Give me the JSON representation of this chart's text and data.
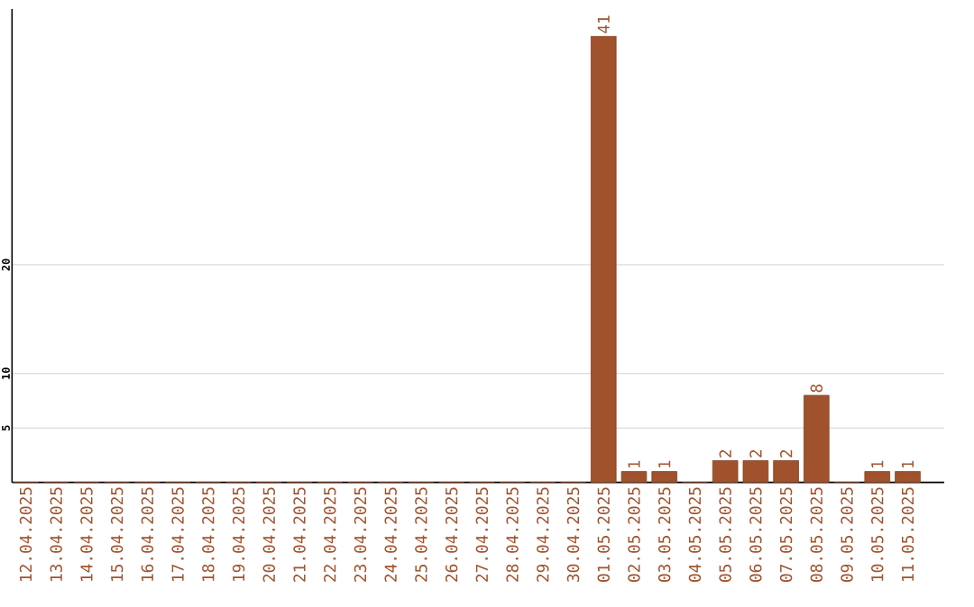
{
  "chart_data": {
    "type": "bar",
    "categories": [
      "12.04.2025",
      "13.04.2025",
      "14.04.2025",
      "15.04.2025",
      "16.04.2025",
      "17.04.2025",
      "18.04.2025",
      "19.04.2025",
      "20.04.2025",
      "21.04.2025",
      "22.04.2025",
      "23.04.2025",
      "24.04.2025",
      "25.04.2025",
      "26.04.2025",
      "27.04.2025",
      "28.04.2025",
      "29.04.2025",
      "30.04.2025",
      "01.05.2025",
      "02.05.2025",
      "03.05.2025",
      "04.05.2025",
      "05.05.2025",
      "06.05.2025",
      "07.05.2025",
      "08.05.2025",
      "09.05.2025",
      "10.05.2025",
      "11.05.2025"
    ],
    "values": [
      0,
      0,
      0,
      0,
      0,
      0,
      0,
      0,
      0,
      0,
      0,
      0,
      0,
      0,
      0,
      0,
      0,
      0,
      0,
      41,
      1,
      1,
      0,
      2,
      2,
      2,
      8,
      0,
      1,
      1
    ],
    "value_labels": [
      null,
      null,
      null,
      null,
      null,
      null,
      null,
      null,
      null,
      null,
      null,
      null,
      null,
      null,
      null,
      null,
      null,
      null,
      null,
      "41",
      "1",
      "1",
      null,
      "2",
      "2",
      "2",
      "8",
      null,
      "1",
      "1"
    ],
    "color": "#a0522d",
    "ylim": [
      0,
      43.5
    ],
    "yticks": [
      5,
      10,
      20
    ],
    "grid": "y"
  }
}
